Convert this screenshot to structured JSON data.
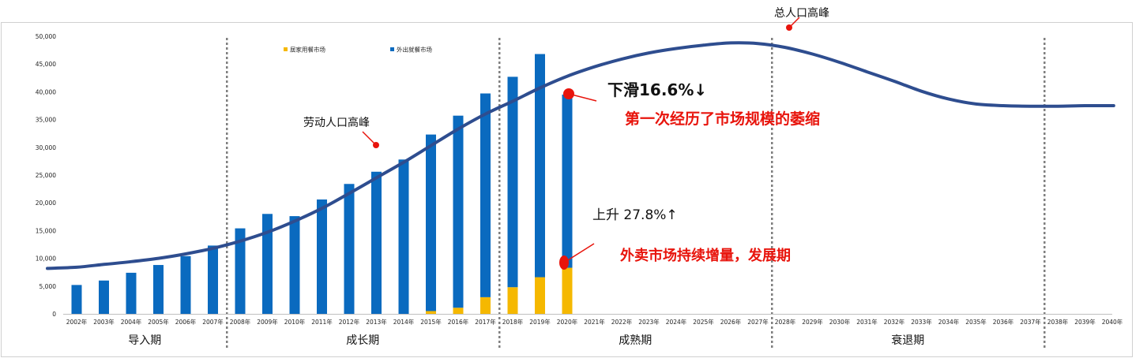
{
  "chart_data": {
    "type": "bar",
    "stacked": true,
    "categories": [
      "2002年",
      "2003年",
      "2004年",
      "2005年",
      "2006年",
      "2007年",
      "2008年",
      "2009年",
      "2010年",
      "2011年",
      "2012年",
      "2013年",
      "2014年",
      "2015年",
      "2016年",
      "2017年",
      "2018年",
      "2019年",
      "2020年",
      "2021年",
      "2022年",
      "2023年",
      "2024年",
      "2025年",
      "2026年",
      "2027年",
      "2028年",
      "2029年",
      "2030年",
      "2031年",
      "2032年",
      "2033年",
      "2034年",
      "2035年",
      "2036年",
      "2037年",
      "2038年",
      "2039年",
      "2040年"
    ],
    "series": [
      {
        "name": "居家用餐市场",
        "color": "#f5b800",
        "values": [
          0,
          0,
          0,
          0,
          0,
          0,
          0,
          0,
          0,
          0,
          0,
          0,
          0,
          500,
          1100,
          3000,
          4800,
          6600,
          8300,
          null,
          null,
          null,
          null,
          null,
          null,
          null,
          null,
          null,
          null,
          null,
          null,
          null,
          null,
          null,
          null,
          null,
          null,
          null,
          null
        ]
      },
      {
        "name": "外出就餐市场",
        "color": "#0a6abf",
        "values": [
          5200,
          6000,
          7400,
          8800,
          10400,
          12300,
          15400,
          18000,
          17600,
          20600,
          23400,
          25600,
          27800,
          31800,
          34600,
          36700,
          37900,
          40200,
          31200,
          null,
          null,
          null,
          null,
          null,
          null,
          null,
          null,
          null,
          null,
          null,
          null,
          null,
          null,
          null,
          null,
          null,
          null,
          null,
          null
        ]
      }
    ],
    "curve": {
      "color": "#2e4d8f",
      "values": [
        8400,
        8900,
        9400,
        10000,
        10800,
        11800,
        13100,
        14700,
        16700,
        19000,
        21700,
        24500,
        27300,
        30300,
        33300,
        36000,
        38300,
        40700,
        42800,
        44500,
        45900,
        47000,
        47800,
        48400,
        48800,
        48700,
        48000,
        46800,
        45300,
        43600,
        41900,
        40100,
        38700,
        37800,
        37500,
        37400,
        37400,
        37500,
        37500
      ]
    },
    "ylim": [
      0,
      50000
    ],
    "yticks": [
      "0",
      "5,000",
      "10,000",
      "15,000",
      "20,000",
      "25,000",
      "30,000",
      "35,000",
      "40,000",
      "45,000",
      "50,000"
    ],
    "legend_placement": "top-left",
    "phases": [
      {
        "label": "导入期",
        "from": "2002年",
        "to": "2007年"
      },
      {
        "label": "成长期",
        "from": "2008年",
        "to": "2017年"
      },
      {
        "label": "成熟期",
        "from": "2018年",
        "to": "2027年"
      },
      {
        "label": "衰退期",
        "from": "2028年",
        "to": "2037年"
      }
    ],
    "annotations": {
      "total_peak": "总人口高峰",
      "labor_peak": "劳动人口高峰",
      "decline_pct": "下滑16.6%↓",
      "decline_note": "第一次经历了市场规模的萎缩",
      "rise_pct": "上升 27.8%↑",
      "rise_note": "外卖市场持续增量，发展期"
    }
  }
}
